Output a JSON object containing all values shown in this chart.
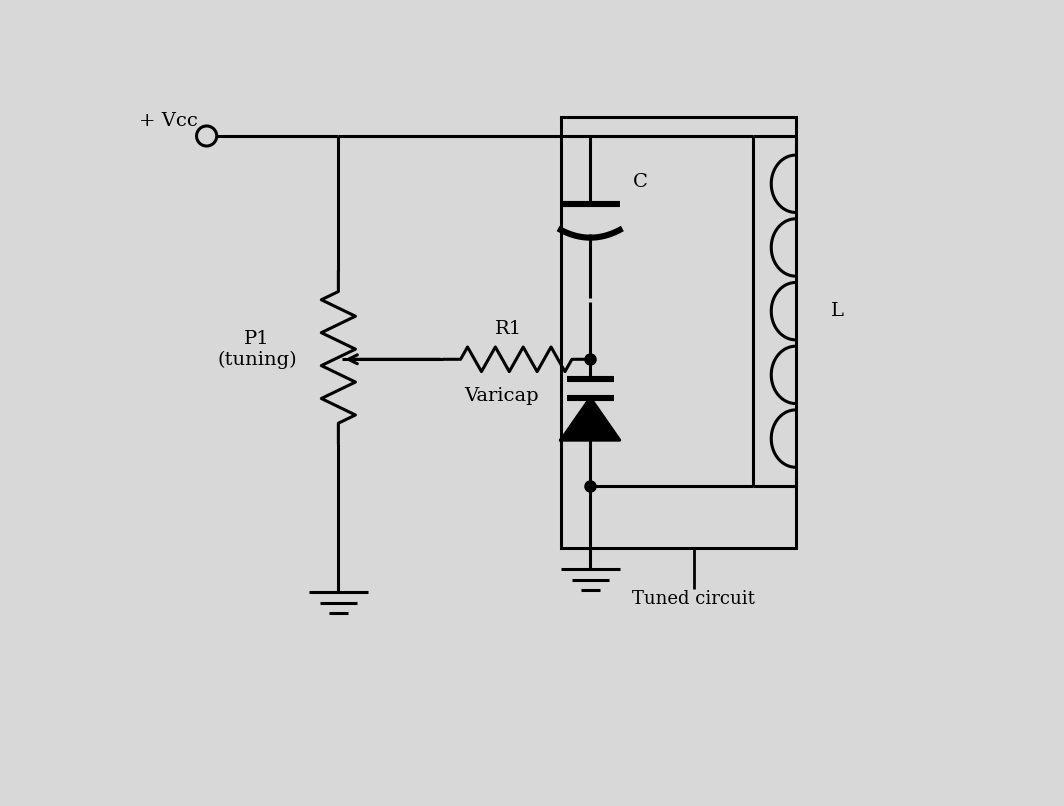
{
  "background_color": "#d8d8d8",
  "paper_color": "#e8e5e0",
  "line_color": "black",
  "line_width": 2.2,
  "components": {
    "vcc_label": "+ Vcc",
    "p1_label": "P1\n(tuning)",
    "r1_label": "R1",
    "varicap_label": "Varicap",
    "c_label": "C",
    "l_label": "L",
    "tuned_circuit_label": "Tuned circuit"
  }
}
